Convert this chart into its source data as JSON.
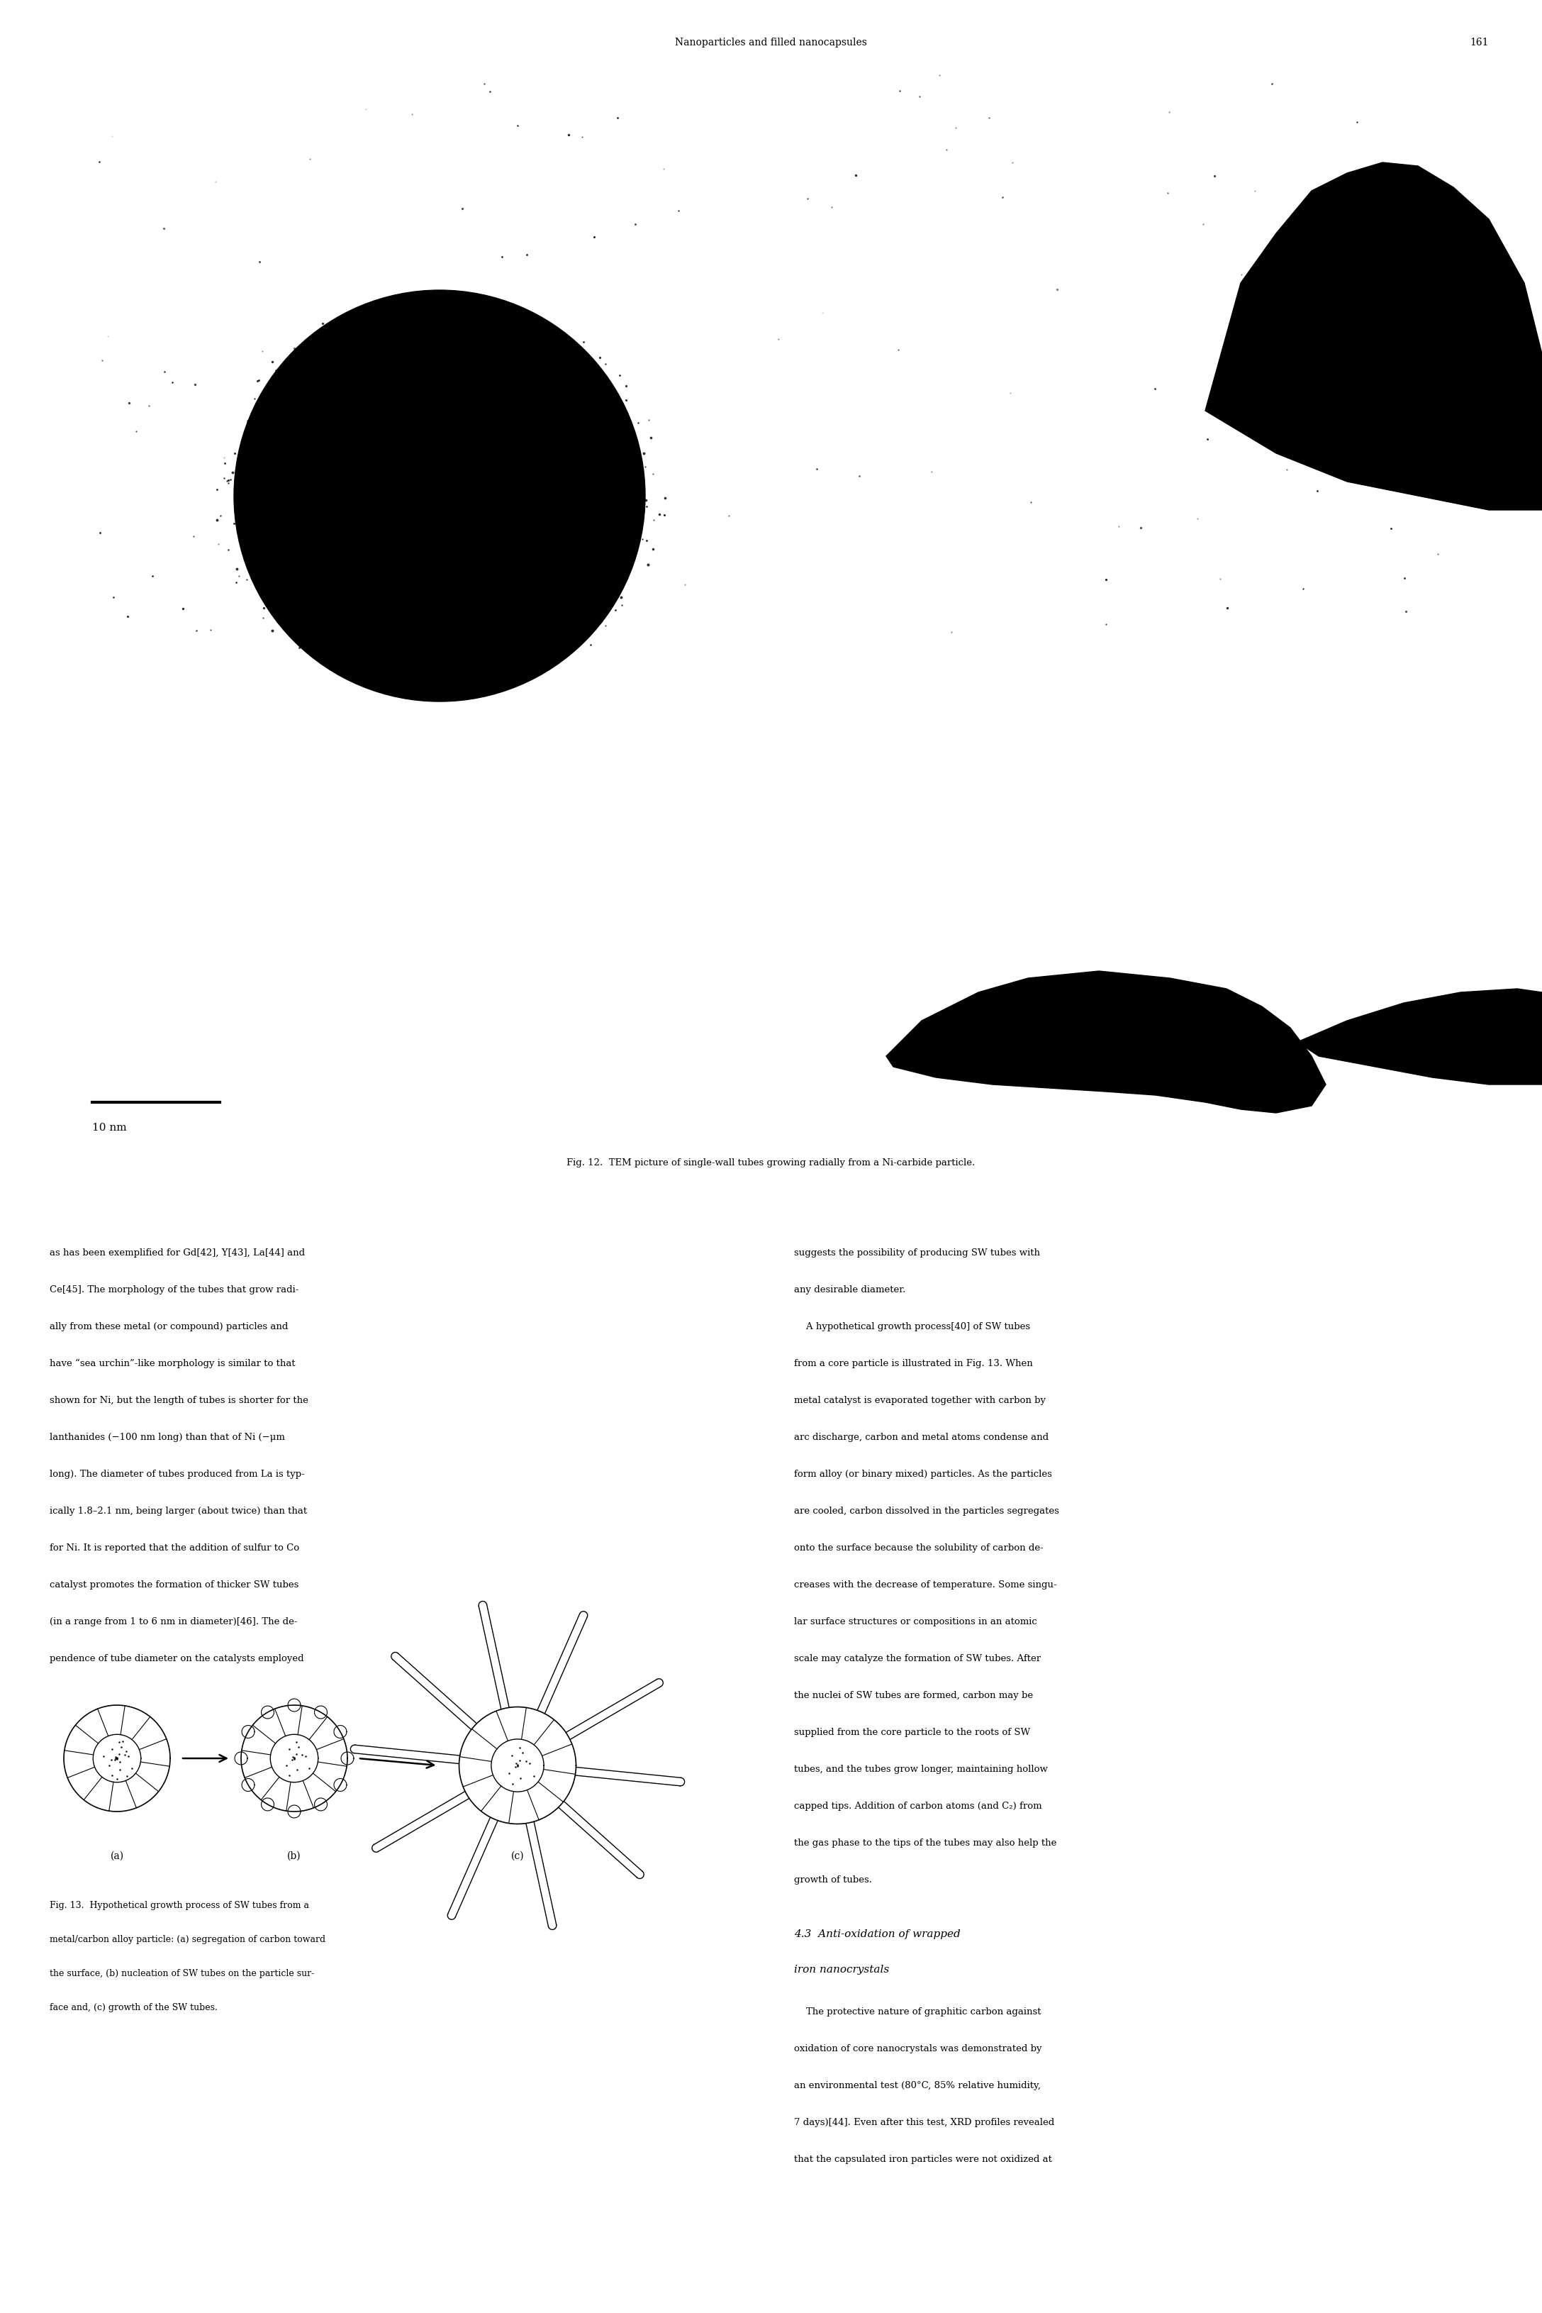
{
  "header_text": "Nanoparticles and filled nanocapsules",
  "page_number": "161",
  "fig12_caption": "Fig. 12.  TEM picture of single-wall tubes growing radially from a Ni-carbide particle.",
  "fig13_caption_line1": "Fig. 13.  Hypothetical growth process of SW tubes from a",
  "fig13_caption_line2": "metal/carbon alloy particle: (a) segregation of carbon toward",
  "fig13_caption_line3": "the surface, (b) nucleation of SW tubes on the particle sur-",
  "fig13_caption_line4": "face and, (c) growth of the SW tubes.",
  "label_a": "(a)",
  "label_b": "(b)",
  "label_c": "(c)",
  "scalebar_text": "10 nm",
  "left_col_text": [
    "as has been exemplified for Gd[42], Y[43], La[44] and",
    "Ce[45]. The morphology of the tubes that grow radi-",
    "ally from these metal (or compound) particles and",
    "have “sea urchin”-like morphology is similar to that",
    "shown for Ni, but the length of tubes is shorter for the",
    "lanthanides (−100 nm long) than that of Ni (−μm",
    "long). The diameter of tubes produced from La is typ-",
    "ically 1.8–2.1 nm, being larger (about twice) than that",
    "for Ni. It is reported that the addition of sulfur to Co",
    "catalyst promotes the formation of thicker SW tubes",
    "(in a range from 1 to 6 nm in diameter)[46]. The de-",
    "pendence of tube diameter on the catalysts employed"
  ],
  "right_col_text": [
    "suggests the possibility of producing SW tubes with",
    "any desirable diameter.",
    "    A hypothetical growth process[40] of SW tubes",
    "from a core particle is illustrated in Fig. 13. When",
    "metal catalyst is evaporated together with carbon by",
    "arc discharge, carbon and metal atoms condense and",
    "form alloy (or binary mixed) particles. As the particles",
    "are cooled, carbon dissolved in the particles segregates",
    "onto the surface because the solubility of carbon de-",
    "creases with the decrease of temperature. Some singu-",
    "lar surface structures or compositions in an atomic",
    "scale may catalyze the formation of SW tubes. After",
    "the nuclei of SW tubes are formed, carbon may be",
    "supplied from the core particle to the roots of SW",
    "tubes, and the tubes grow longer, maintaining hollow",
    "capped tips. Addition of carbon atoms (and C₂) from",
    "the gas phase to the tips of the tubes may also help the",
    "growth of tubes."
  ],
  "section_title_line1": "4.3  Anti-oxidation of wrapped",
  "section_title_line2": "iron nanocrystals",
  "right_col_text2": [
    "    The protective nature of graphitic carbon against",
    "oxidation of core nanocrystals was demonstrated by",
    "an environmental test (80°C, 85% relative humidity,",
    "7 days)[44]. Even after this test, XRD profiles revealed",
    "that the capsulated iron particles were not oxidized at"
  ],
  "bg_color": "#ffffff",
  "text_color": "#000000",
  "font_size_body": 9.5,
  "font_size_caption": 9.0,
  "font_size_header": 9.5
}
